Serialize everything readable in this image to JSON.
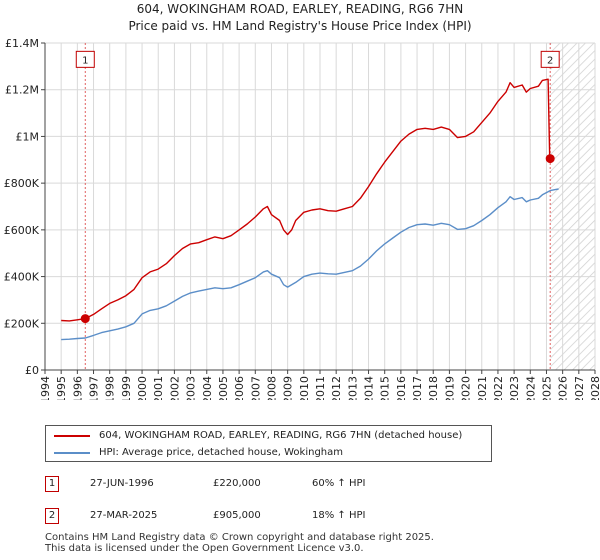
{
  "chart_data": {
    "type": "line",
    "title": "604, WOKINGHAM ROAD, EARLEY, READING, RG6 7HN",
    "subtitle": "Price paid vs. HM Land Registry's House Price Index (HPI)",
    "xlim": [
      1994,
      2028
    ],
    "ylim": [
      0,
      1400000
    ],
    "x_ticks": [
      "1994",
      "1995",
      "1996",
      "1997",
      "1998",
      "1999",
      "2000",
      "2001",
      "2002",
      "2003",
      "2004",
      "2005",
      "2006",
      "2007",
      "2008",
      "2009",
      "2010",
      "2011",
      "2012",
      "2013",
      "2014",
      "2015",
      "2016",
      "2017",
      "2018",
      "2019",
      "2020",
      "2021",
      "2022",
      "2023",
      "2024",
      "2025",
      "2026",
      "2027",
      "2028"
    ],
    "y_ticks": [
      {
        "value": 0,
        "label": "£0"
      },
      {
        "value": 200000,
        "label": "£200K"
      },
      {
        "value": 400000,
        "label": "£400K"
      },
      {
        "value": 600000,
        "label": "£600K"
      },
      {
        "value": 800000,
        "label": "£800K"
      },
      {
        "value": 1000000,
        "label": "£1M"
      },
      {
        "value": 1200000,
        "label": "£1.2M"
      },
      {
        "value": 1400000,
        "label": "£1.4M"
      }
    ],
    "grid": true,
    "hatch_after": 2025.25,
    "series": [
      {
        "name": "604, WOKINGHAM ROAD, EARLEY, READING, RG6 7HN (detached house)",
        "color": "#cc0000",
        "points": [
          [
            1995.0,
            212000
          ],
          [
            1995.5,
            210000
          ],
          [
            1996.0,
            215000
          ],
          [
            1996.49,
            220000
          ],
          [
            1997.0,
            238000
          ],
          [
            1997.5,
            262000
          ],
          [
            1998.0,
            285000
          ],
          [
            1998.5,
            300000
          ],
          [
            1999.0,
            318000
          ],
          [
            1999.5,
            345000
          ],
          [
            2000.0,
            395000
          ],
          [
            2000.5,
            420000
          ],
          [
            2001.0,
            432000
          ],
          [
            2001.5,
            455000
          ],
          [
            2002.0,
            490000
          ],
          [
            2002.5,
            520000
          ],
          [
            2003.0,
            540000
          ],
          [
            2003.5,
            545000
          ],
          [
            2004.0,
            558000
          ],
          [
            2004.5,
            570000
          ],
          [
            2005.0,
            562000
          ],
          [
            2005.5,
            575000
          ],
          [
            2006.0,
            600000
          ],
          [
            2006.5,
            625000
          ],
          [
            2007.0,
            655000
          ],
          [
            2007.5,
            690000
          ],
          [
            2007.75,
            700000
          ],
          [
            2008.0,
            665000
          ],
          [
            2008.5,
            640000
          ],
          [
            2008.75,
            600000
          ],
          [
            2009.0,
            580000
          ],
          [
            2009.25,
            600000
          ],
          [
            2009.5,
            640000
          ],
          [
            2010.0,
            675000
          ],
          [
            2010.5,
            685000
          ],
          [
            2011.0,
            690000
          ],
          [
            2011.5,
            682000
          ],
          [
            2012.0,
            680000
          ],
          [
            2012.5,
            690000
          ],
          [
            2013.0,
            700000
          ],
          [
            2013.5,
            735000
          ],
          [
            2014.0,
            785000
          ],
          [
            2014.5,
            840000
          ],
          [
            2015.0,
            890000
          ],
          [
            2015.5,
            935000
          ],
          [
            2016.0,
            980000
          ],
          [
            2016.5,
            1010000
          ],
          [
            2017.0,
            1030000
          ],
          [
            2017.5,
            1035000
          ],
          [
            2018.0,
            1030000
          ],
          [
            2018.5,
            1040000
          ],
          [
            2019.0,
            1030000
          ],
          [
            2019.5,
            995000
          ],
          [
            2020.0,
            1000000
          ],
          [
            2020.5,
            1020000
          ],
          [
            2021.0,
            1060000
          ],
          [
            2021.5,
            1100000
          ],
          [
            2022.0,
            1150000
          ],
          [
            2022.5,
            1190000
          ],
          [
            2022.75,
            1230000
          ],
          [
            2023.0,
            1210000
          ],
          [
            2023.5,
            1220000
          ],
          [
            2023.75,
            1190000
          ],
          [
            2024.0,
            1205000
          ],
          [
            2024.5,
            1215000
          ],
          [
            2024.75,
            1240000
          ],
          [
            2025.1,
            1245000
          ],
          [
            2025.2,
            910000
          ],
          [
            2025.23,
            905000
          ],
          [
            2025.4,
            900000
          ]
        ]
      },
      {
        "name": "HPI: Average price, detached house, Wokingham",
        "color": "#5b8ec8",
        "points": [
          [
            1995.0,
            130000
          ],
          [
            1995.5,
            132000
          ],
          [
            1996.0,
            135000
          ],
          [
            1996.49,
            137000
          ],
          [
            1997.0,
            148000
          ],
          [
            1997.5,
            160000
          ],
          [
            1998.0,
            168000
          ],
          [
            1998.5,
            175000
          ],
          [
            1999.0,
            185000
          ],
          [
            1999.5,
            200000
          ],
          [
            2000.0,
            240000
          ],
          [
            2000.5,
            255000
          ],
          [
            2001.0,
            262000
          ],
          [
            2001.5,
            275000
          ],
          [
            2002.0,
            295000
          ],
          [
            2002.5,
            315000
          ],
          [
            2003.0,
            330000
          ],
          [
            2003.5,
            338000
          ],
          [
            2004.0,
            345000
          ],
          [
            2004.5,
            352000
          ],
          [
            2005.0,
            348000
          ],
          [
            2005.5,
            352000
          ],
          [
            2006.0,
            365000
          ],
          [
            2006.5,
            380000
          ],
          [
            2007.0,
            395000
          ],
          [
            2007.5,
            420000
          ],
          [
            2007.75,
            425000
          ],
          [
            2008.0,
            410000
          ],
          [
            2008.5,
            395000
          ],
          [
            2008.75,
            365000
          ],
          [
            2009.0,
            355000
          ],
          [
            2009.5,
            375000
          ],
          [
            2010.0,
            400000
          ],
          [
            2010.5,
            410000
          ],
          [
            2011.0,
            415000
          ],
          [
            2011.5,
            412000
          ],
          [
            2012.0,
            410000
          ],
          [
            2012.5,
            418000
          ],
          [
            2013.0,
            425000
          ],
          [
            2013.5,
            445000
          ],
          [
            2014.0,
            475000
          ],
          [
            2014.5,
            510000
          ],
          [
            2015.0,
            540000
          ],
          [
            2015.5,
            565000
          ],
          [
            2016.0,
            590000
          ],
          [
            2016.5,
            610000
          ],
          [
            2017.0,
            622000
          ],
          [
            2017.5,
            625000
          ],
          [
            2018.0,
            620000
          ],
          [
            2018.5,
            628000
          ],
          [
            2019.0,
            622000
          ],
          [
            2019.5,
            602000
          ],
          [
            2020.0,
            605000
          ],
          [
            2020.5,
            618000
          ],
          [
            2021.0,
            640000
          ],
          [
            2021.5,
            665000
          ],
          [
            2022.0,
            695000
          ],
          [
            2022.5,
            720000
          ],
          [
            2022.75,
            742000
          ],
          [
            2023.0,
            730000
          ],
          [
            2023.5,
            738000
          ],
          [
            2023.75,
            720000
          ],
          [
            2024.0,
            728000
          ],
          [
            2024.5,
            735000
          ],
          [
            2024.75,
            750000
          ],
          [
            2025.23,
            768000
          ],
          [
            2025.5,
            772000
          ],
          [
            2025.75,
            775000
          ]
        ]
      }
    ],
    "markers": [
      {
        "label": "1",
        "x": 1996.49,
        "y": 220000,
        "badge_value": 1330000
      },
      {
        "label": "2",
        "x": 2025.23,
        "y": 905000,
        "badge_value": 1330000
      }
    ]
  },
  "legend": {
    "items": [
      {
        "label": "604, WOKINGHAM ROAD, EARLEY, READING, RG6 7HN (detached house)",
        "color": "#cc0000"
      },
      {
        "label": "HPI: Average price, detached house, Wokingham",
        "color": "#5b8ec8"
      }
    ]
  },
  "sales": [
    {
      "id": "1",
      "date": "27-JUN-1996",
      "price": "£220,000",
      "hpi": "60% ↑ HPI"
    },
    {
      "id": "2",
      "date": "27-MAR-2025",
      "price": "£905,000",
      "hpi": "18% ↑ HPI"
    }
  ],
  "footer": {
    "line1": "Contains HM Land Registry data © Crown copyright and database right 2025.",
    "line2": "This data is licensed under the Open Government Licence v3.0."
  }
}
